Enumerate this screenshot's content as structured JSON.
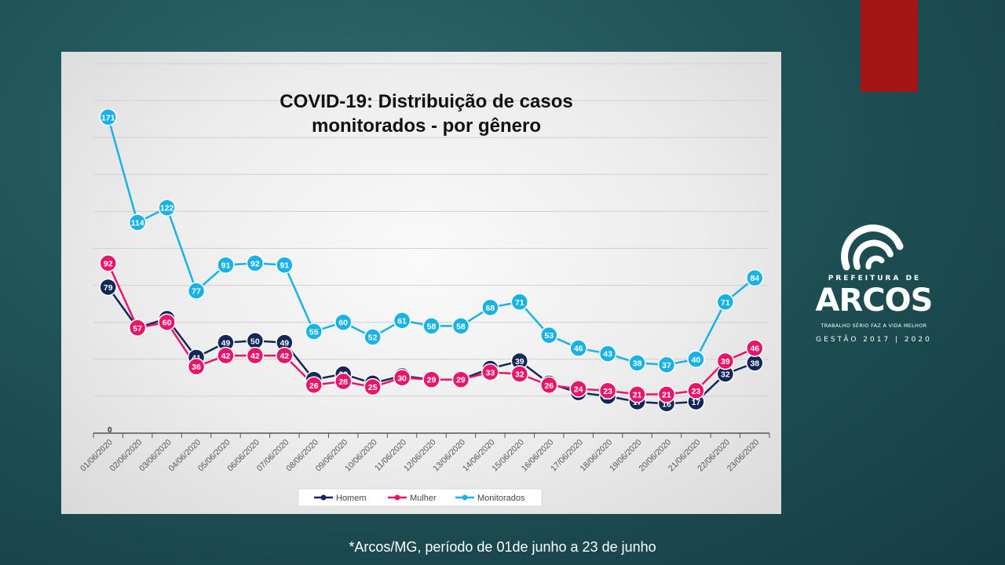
{
  "chart_data": {
    "type": "line",
    "title_line1": "COVID-19: Distribuição de casos",
    "title_line2": "monitorados - por gênero",
    "categories": [
      "01/06/2020",
      "02/06/2020",
      "03/06/2020",
      "04/06/2020",
      "05/06/2020",
      "06/06/2020",
      "07/06/2020",
      "08/06/2020",
      "09/06/2020",
      "10/06/2020",
      "11/06/2020",
      "12/06/2020",
      "13/06/2020",
      "14/06/2020",
      "15/06/2020",
      "16/06/2020",
      "17/06/2020",
      "18/06/2020",
      "19/06/2020",
      "20/06/2020",
      "21/06/2020",
      "22/06/2020",
      "23/06/2020"
    ],
    "series": [
      {
        "name": "Homem",
        "color": "#13275a",
        "values": [
          79,
          57,
          62,
          41,
          49,
          50,
          49,
          29,
          32,
          27,
          31,
          29,
          29,
          35,
          39,
          27,
          22,
          20,
          17,
          16,
          17,
          32,
          38
        ]
      },
      {
        "name": "Mulher",
        "color": "#e8166b",
        "values": [
          92,
          57,
          60,
          36,
          42,
          42,
          42,
          26,
          28,
          25,
          30,
          29,
          29,
          33,
          32,
          26,
          24,
          23,
          21,
          21,
          23,
          39,
          46
        ]
      },
      {
        "name": "Monitorados",
        "color": "#19b2e6",
        "values": [
          171,
          114,
          122,
          77,
          91,
          92,
          91,
          55,
          60,
          52,
          61,
          58,
          58,
          68,
          71,
          53,
          46,
          43,
          38,
          37,
          40,
          71,
          84
        ]
      }
    ],
    "ylim": [
      0,
      200
    ],
    "y_zero_label": "0",
    "grid": true,
    "legend_position": "bottom"
  },
  "logo": {
    "name": "PREFEITURA DE",
    "brand": "ARCOS",
    "slogan": "TRABALHO SÉRIO FAZ A VIDA MELHOR",
    "term": "GESTÃO 2017 | 2020"
  },
  "footnote": "*Arcos/MG, período de 01de junho a 23 de junho"
}
